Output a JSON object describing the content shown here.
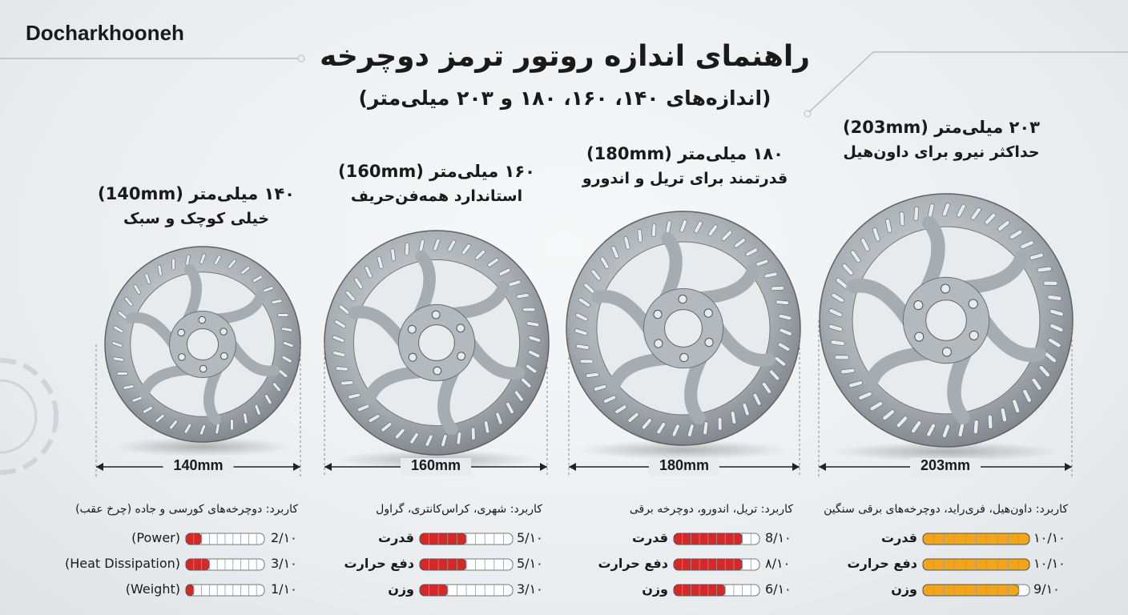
{
  "brand": "Docharkhooneh",
  "title": "راهنمای اندازه روتور ترمز دوچرخه",
  "subtitle": "(اندازه‌های ۱۴۰، ۱۶۰، ۱۸۰ و ۲۰۳ میلی‌متر)",
  "rotors": [
    {
      "heading": "۱۴۰ میلی‌متر (140mm)",
      "tagline": "خیلی کوچک و سبک",
      "size_label": "140mm",
      "usage": "کاربرد: دوچرخه‌های کورسی و جاده (چرخ عقب)",
      "bar_color": "#d62828",
      "ratings": [
        {
          "label": "(Power)",
          "value": 2,
          "max": 10,
          "value_label": "2/۱۰"
        },
        {
          "label": "(Heat Dissipation)",
          "value": 3,
          "max": 10,
          "value_label": "3/۱۰"
        },
        {
          "label": "(Weight)",
          "value": 1,
          "max": 10,
          "value_label": "1/۱۰"
        }
      ]
    },
    {
      "heading": "۱۶۰ میلی‌متر (160mm)",
      "tagline": "استاندارد همه‌فن‌حریف",
      "size_label": "160mm",
      "usage": "کاربرد: شهری، کراس‌کانتری، گراول",
      "bar_color": "#d62828",
      "ratings": [
        {
          "label": "قدرت",
          "value": 5,
          "max": 10,
          "value_label": "5/۱۰"
        },
        {
          "label": "دفع حرارت",
          "value": 5,
          "max": 10,
          "value_label": "5/۱۰"
        },
        {
          "label": "وزن",
          "value": 3,
          "max": 10,
          "value_label": "3/۱۰"
        }
      ]
    },
    {
      "heading": "۱۸۰ میلی‌متر (180mm)",
      "tagline": "قدرتمند برای تریل و اندورو",
      "size_label": "180mm",
      "usage": "کاربرد: تریل، اندورو، دوچرخه برقی",
      "bar_color": "#d62828",
      "ratings": [
        {
          "label": "قدرت",
          "value": 8,
          "max": 10,
          "value_label": "8/۱۰"
        },
        {
          "label": "دفع حرارت",
          "value": 8,
          "max": 10,
          "value_label": "۸/۱۰"
        },
        {
          "label": "وزن",
          "value": 6,
          "max": 10,
          "value_label": "6/۱۰"
        }
      ]
    },
    {
      "heading": "۲۰۳ میلی‌متر (203mm)",
      "tagline": "حداکثر نیرو برای داون‌هیل",
      "size_label": "203mm",
      "usage": "کاربرد: داون‌هیل، فری‌راید، دوچرخه‌های برقی سنگین",
      "bar_color": "#f2a516",
      "ratings": [
        {
          "label": "قدرت",
          "value": 10,
          "max": 10,
          "value_label": "۱۰/۱۰"
        },
        {
          "label": "دفع حرارت",
          "value": 10,
          "max": 10,
          "value_label": "۱۰/۱۰"
        },
        {
          "label": "وزن",
          "value": 9,
          "max": 10,
          "value_label": "9/۱۰"
        }
      ]
    }
  ]
}
